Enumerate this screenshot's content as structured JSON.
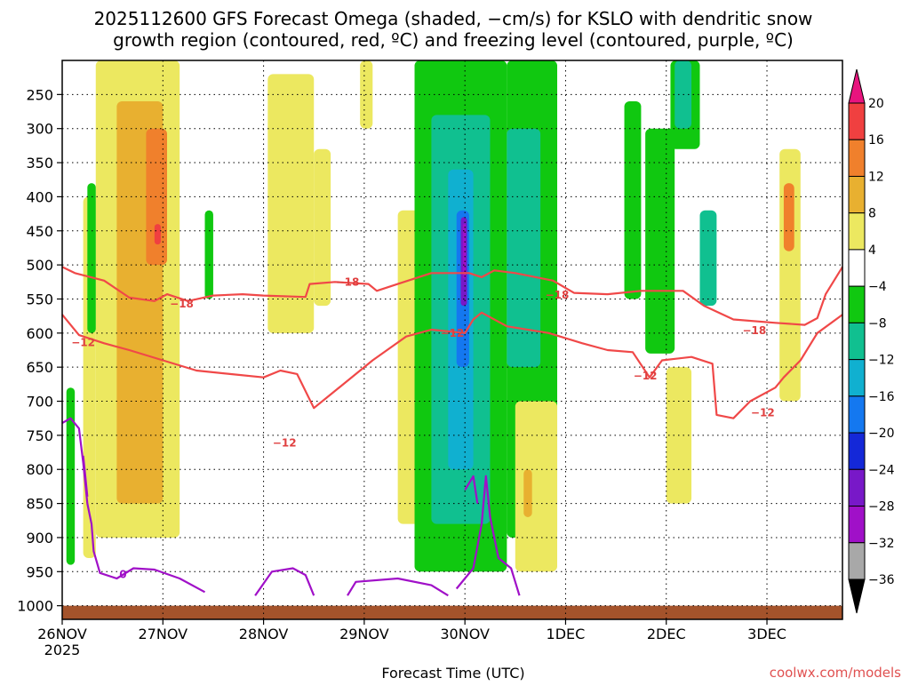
{
  "chart_data": {
    "type": "heatmap",
    "title_line1": "2025112600 GFS Forecast Omega (shaded, −cm/s) for KSLO with dendritic snow",
    "title_line2": "growth region (contoured, red, ºC) and freezing level (contoured, purple, ºC)",
    "xlabel": "Forecast Time (UTC)",
    "x_ticks": [
      {
        "label": "26NOV",
        "sub": "2025",
        "hours": 0
      },
      {
        "label": "27NOV",
        "sub": "",
        "hours": 24
      },
      {
        "label": "28NOV",
        "sub": "",
        "hours": 48
      },
      {
        "label": "29NOV",
        "sub": "",
        "hours": 72
      },
      {
        "label": "30NOV",
        "sub": "",
        "hours": 96
      },
      {
        "label": "1DEC",
        "sub": "",
        "hours": 120
      },
      {
        "label": "2DEC",
        "sub": "",
        "hours": 144
      },
      {
        "label": "3DEC",
        "sub": "",
        "hours": 168
      }
    ],
    "xlim_hours": [
      0,
      186
    ],
    "y_ticks": [
      250,
      300,
      350,
      400,
      450,
      500,
      550,
      600,
      650,
      700,
      750,
      800,
      850,
      900,
      950,
      1000
    ],
    "ylim_hPa": [
      200,
      1020
    ],
    "grid": true,
    "colorbar": {
      "labels": [
        "20",
        "16",
        "12",
        "8",
        "4",
        "−4",
        "−8",
        "−12",
        "−16",
        "−20",
        "−24",
        "−28",
        "−32",
        "−36"
      ],
      "colors": [
        "#e8147e",
        "#f04040",
        "#f0802c",
        "#e8b030",
        "#ece860",
        "#ffffff",
        "#10c810",
        "#10c090",
        "#10b0d0",
        "#1478f0",
        "#1428d8",
        "#7818c8",
        "#a010c8",
        "#a8a8a8",
        "#000000"
      ]
    },
    "omega_cells": [
      {
        "t0": 8,
        "t1": 28,
        "p0": 200,
        "p1": 900,
        "v": 5
      },
      {
        "t0": 13,
        "t1": 24,
        "p0": 260,
        "p1": 850,
        "v": 9
      },
      {
        "t0": 20,
        "t1": 25,
        "p0": 300,
        "p1": 500,
        "v": 13
      },
      {
        "t0": 22,
        "t1": 23.5,
        "p0": 440,
        "p1": 470,
        "v": 17
      },
      {
        "t0": 5,
        "t1": 8,
        "p0": 400,
        "p1": 930,
        "v": 5
      },
      {
        "t0": 6,
        "t1": 8,
        "p0": 380,
        "p1": 600,
        "v": -6
      },
      {
        "t0": 1,
        "t1": 3,
        "p0": 680,
        "p1": 940,
        "v": -6
      },
      {
        "t0": 34,
        "t1": 36,
        "p0": 420,
        "p1": 550,
        "v": -6
      },
      {
        "t0": 49,
        "t1": 60,
        "p0": 220,
        "p1": 600,
        "v": 5
      },
      {
        "t0": 60,
        "t1": 64,
        "p0": 330,
        "p1": 560,
        "v": 5
      },
      {
        "t0": 71,
        "t1": 74,
        "p0": 200,
        "p1": 300,
        "v": 5
      },
      {
        "t0": 80,
        "t1": 88,
        "p0": 420,
        "p1": 880,
        "v": 5
      },
      {
        "t0": 84,
        "t1": 106,
        "p0": 200,
        "p1": 950,
        "v": -6
      },
      {
        "t0": 88,
        "t1": 102,
        "p0": 280,
        "p1": 880,
        "v": -10
      },
      {
        "t0": 92,
        "t1": 98,
        "p0": 360,
        "p1": 800,
        "v": -14
      },
      {
        "t0": 94,
        "t1": 97,
        "p0": 420,
        "p1": 650,
        "v": -18
      },
      {
        "t0": 95,
        "t1": 96.5,
        "p0": 430,
        "p1": 560,
        "v": -26
      },
      {
        "t0": 95.5,
        "t1": 96.2,
        "p0": 440,
        "p1": 520,
        "v": -30
      },
      {
        "t0": 106,
        "t1": 118,
        "p0": 200,
        "p1": 900,
        "v": -6
      },
      {
        "t0": 106,
        "t1": 114,
        "p0": 300,
        "p1": 650,
        "v": -10
      },
      {
        "t0": 108,
        "t1": 118,
        "p0": 700,
        "p1": 950,
        "v": 5
      },
      {
        "t0": 110,
        "t1": 112,
        "p0": 800,
        "p1": 870,
        "v": 9
      },
      {
        "t0": 134,
        "t1": 138,
        "p0": 260,
        "p1": 550,
        "v": -6
      },
      {
        "t0": 139,
        "t1": 146,
        "p0": 300,
        "p1": 630,
        "v": -6
      },
      {
        "t0": 145,
        "t1": 152,
        "p0": 200,
        "p1": 330,
        "v": -6
      },
      {
        "t0": 146,
        "t1": 150,
        "p0": 200,
        "p1": 300,
        "v": -10
      },
      {
        "t0": 152,
        "t1": 156,
        "p0": 420,
        "p1": 560,
        "v": -10
      },
      {
        "t0": 144,
        "t1": 150,
        "p0": 650,
        "p1": 850,
        "v": 5
      },
      {
        "t0": 171,
        "t1": 176,
        "p0": 330,
        "p1": 700,
        "v": 5
      },
      {
        "t0": 172,
        "t1": 174.5,
        "p0": 380,
        "p1": 480,
        "v": 13
      }
    ],
    "dgz_series": [
      {
        "name": "-18",
        "label": "−18",
        "label_points": [
          [
            28.5,
            557
          ],
          [
            68,
            525
          ],
          [
            118,
            544
          ],
          [
            165,
            596
          ]
        ],
        "points": [
          [
            0,
            503
          ],
          [
            3,
            512
          ],
          [
            10,
            523
          ],
          [
            16,
            548
          ],
          [
            22,
            553
          ],
          [
            25,
            543
          ],
          [
            30,
            553
          ],
          [
            36,
            545
          ],
          [
            43,
            543
          ],
          [
            48,
            545
          ],
          [
            58,
            547
          ],
          [
            59,
            528
          ],
          [
            65,
            525
          ],
          [
            73,
            528
          ],
          [
            75,
            538
          ],
          [
            80,
            528
          ],
          [
            88,
            512
          ],
          [
            97,
            512
          ],
          [
            100,
            518
          ],
          [
            103,
            508
          ],
          [
            108,
            512
          ],
          [
            117,
            523
          ],
          [
            122,
            541
          ],
          [
            130,
            543
          ],
          [
            138,
            538
          ],
          [
            148,
            538
          ],
          [
            153,
            560
          ],
          [
            160,
            580
          ],
          [
            170,
            585
          ],
          [
            177,
            588
          ],
          [
            180,
            578
          ],
          [
            182,
            543
          ],
          [
            186,
            503
          ]
        ]
      },
      {
        "name": "-12",
        "label": "−12",
        "label_points": [
          [
            5,
            614
          ],
          [
            53,
            761
          ],
          [
            93,
            600
          ],
          [
            139,
            663
          ],
          [
            167,
            717
          ]
        ],
        "points": [
          [
            0,
            573
          ],
          [
            4,
            603
          ],
          [
            10,
            615
          ],
          [
            16,
            625
          ],
          [
            24,
            640
          ],
          [
            32,
            655
          ],
          [
            40,
            660
          ],
          [
            48,
            665
          ],
          [
            52,
            655
          ],
          [
            56,
            660
          ],
          [
            60,
            710
          ],
          [
            64,
            690
          ],
          [
            74,
            640
          ],
          [
            82,
            605
          ],
          [
            88,
            595
          ],
          [
            96,
            600
          ],
          [
            98,
            580
          ],
          [
            100,
            570
          ],
          [
            106,
            590
          ],
          [
            116,
            600
          ],
          [
            124,
            615
          ],
          [
            130,
            625
          ],
          [
            136,
            628
          ],
          [
            140,
            665
          ],
          [
            143,
            640
          ],
          [
            150,
            635
          ],
          [
            155,
            645
          ],
          [
            156,
            720
          ],
          [
            160,
            725
          ],
          [
            164,
            700
          ],
          [
            170,
            680
          ],
          [
            172,
            665
          ],
          [
            176,
            640
          ],
          [
            180,
            600
          ],
          [
            186,
            573
          ]
        ]
      }
    ],
    "freezing_series": [
      {
        "name": "0",
        "label": "0",
        "label_points": [
          [
            14.5,
            954
          ]
        ],
        "points_a": [
          [
            0,
            732
          ],
          [
            2,
            725
          ],
          [
            4,
            740
          ],
          [
            5,
            790
          ],
          [
            6,
            850
          ],
          [
            7,
            880
          ],
          [
            7.5,
            920
          ],
          [
            9,
            952
          ],
          [
            13,
            960
          ],
          [
            17,
            945
          ],
          [
            22,
            947
          ],
          [
            28,
            960
          ],
          [
            34,
            980
          ]
        ],
        "points_b": [
          [
            5,
            780
          ],
          [
            5.5,
            810
          ],
          [
            6,
            840
          ]
        ]
      }
    ],
    "ground_hPa": 1000
  },
  "credit": "coolwx.com/models"
}
